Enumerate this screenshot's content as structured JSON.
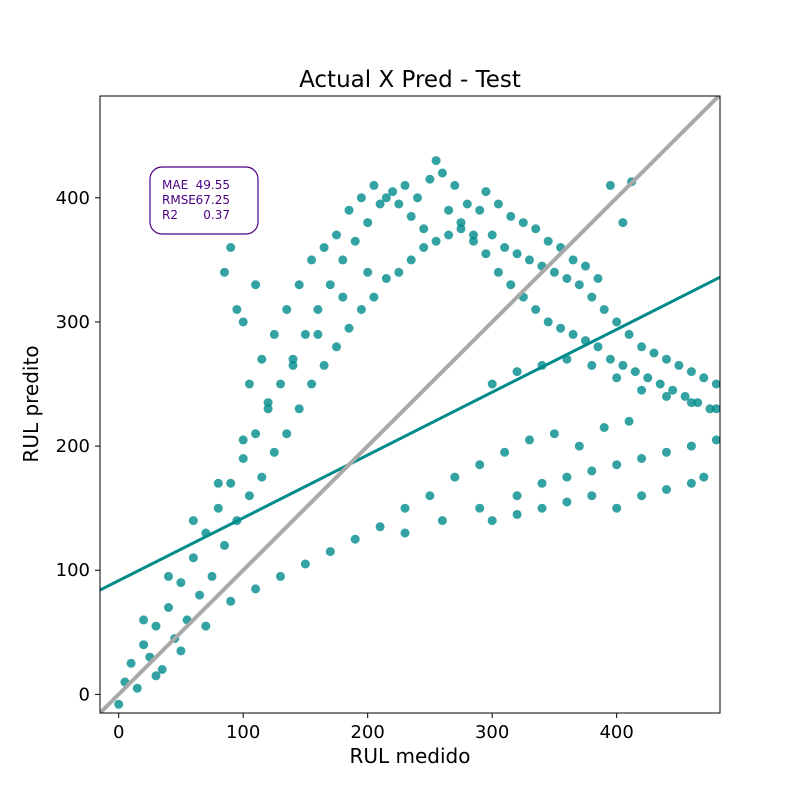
{
  "chart_data": {
    "type": "scatter",
    "title": "Actual X Pred - Test",
    "xlabel": "RUL medido",
    "ylabel": "RUL predito",
    "xlim": [
      -15,
      483
    ],
    "ylim": [
      -15,
      482
    ],
    "xticks": [
      0,
      100,
      200,
      300,
      400
    ],
    "yticks": [
      0,
      100,
      200,
      300,
      400
    ],
    "grid": false,
    "colors": {
      "points": "#008b8b",
      "regression": "#008b8b",
      "identity": "#a9a9a9",
      "metrics_text": "#4b0082",
      "metrics_border": "#4b0082"
    },
    "metrics": [
      {
        "label": "MAE",
        "value": "49.55"
      },
      {
        "label": "RMSE",
        "value": "67.25"
      },
      {
        "label": "R2",
        "value": "0.37"
      }
    ],
    "regression_line": {
      "x": [
        -15,
        483
      ],
      "y": [
        84,
        336
      ]
    },
    "identity_line": {
      "x": [
        -15,
        483
      ],
      "y": [
        -15,
        483
      ]
    },
    "series": [
      {
        "points": [
          [
            0,
            -8
          ],
          [
            5,
            10
          ],
          [
            10,
            25
          ],
          [
            15,
            5
          ],
          [
            20,
            40
          ],
          [
            25,
            30
          ],
          [
            30,
            55
          ],
          [
            35,
            20
          ],
          [
            40,
            70
          ],
          [
            45,
            45
          ],
          [
            50,
            90
          ],
          [
            55,
            60
          ],
          [
            60,
            110
          ],
          [
            65,
            80
          ],
          [
            70,
            130
          ],
          [
            75,
            95
          ],
          [
            80,
            150
          ],
          [
            85,
            120
          ],
          [
            90,
            170
          ],
          [
            95,
            140
          ],
          [
            100,
            190
          ],
          [
            105,
            160
          ],
          [
            110,
            210
          ],
          [
            115,
            175
          ],
          [
            120,
            230
          ],
          [
            125,
            195
          ],
          [
            130,
            250
          ],
          [
            135,
            210
          ],
          [
            140,
            270
          ],
          [
            145,
            230
          ],
          [
            150,
            290
          ],
          [
            155,
            250
          ],
          [
            160,
            310
          ],
          [
            165,
            265
          ],
          [
            170,
            330
          ],
          [
            175,
            280
          ],
          [
            180,
            350
          ],
          [
            185,
            295
          ],
          [
            190,
            365
          ],
          [
            195,
            310
          ],
          [
            200,
            380
          ],
          [
            205,
            320
          ],
          [
            210,
            395
          ],
          [
            215,
            335
          ],
          [
            220,
            405
          ],
          [
            225,
            340
          ],
          [
            230,
            410
          ],
          [
            235,
            350
          ],
          [
            240,
            400
          ],
          [
            245,
            360
          ],
          [
            250,
            415
          ],
          [
            255,
            365
          ],
          [
            260,
            420
          ],
          [
            265,
            370
          ],
          [
            270,
            410
          ],
          [
            275,
            375
          ],
          [
            280,
            395
          ],
          [
            285,
            365
          ],
          [
            290,
            390
          ],
          [
            295,
            355
          ],
          [
            300,
            370
          ],
          [
            305,
            340
          ],
          [
            310,
            360
          ],
          [
            315,
            330
          ],
          [
            320,
            355
          ],
          [
            325,
            320
          ],
          [
            330,
            350
          ],
          [
            335,
            310
          ],
          [
            340,
            345
          ],
          [
            345,
            300
          ],
          [
            350,
            340
          ],
          [
            355,
            295
          ],
          [
            360,
            335
          ],
          [
            365,
            290
          ],
          [
            370,
            330
          ],
          [
            375,
            285
          ],
          [
            380,
            320
          ],
          [
            385,
            280
          ],
          [
            390,
            310
          ],
          [
            395,
            270
          ],
          [
            400,
            300
          ],
          [
            405,
            265
          ],
          [
            410,
            290
          ],
          [
            415,
            260
          ],
          [
            420,
            280
          ],
          [
            425,
            255
          ],
          [
            430,
            275
          ],
          [
            435,
            250
          ],
          [
            440,
            270
          ],
          [
            445,
            245
          ],
          [
            450,
            265
          ],
          [
            455,
            240
          ],
          [
            460,
            260
          ],
          [
            465,
            235
          ],
          [
            470,
            255
          ],
          [
            475,
            230
          ],
          [
            480,
            250
          ],
          [
            20,
            60
          ],
          [
            40,
            95
          ],
          [
            60,
            140
          ],
          [
            80,
            170
          ],
          [
            100,
            205
          ],
          [
            120,
            235
          ],
          [
            140,
            265
          ],
          [
            160,
            290
          ],
          [
            180,
            320
          ],
          [
            200,
            340
          ],
          [
            30,
            15
          ],
          [
            50,
            35
          ],
          [
            70,
            55
          ],
          [
            90,
            75
          ],
          [
            110,
            85
          ],
          [
            130,
            95
          ],
          [
            150,
            105
          ],
          [
            170,
            115
          ],
          [
            190,
            125
          ],
          [
            210,
            135
          ],
          [
            230,
            150
          ],
          [
            250,
            160
          ],
          [
            270,
            175
          ],
          [
            290,
            185
          ],
          [
            310,
            195
          ],
          [
            330,
            205
          ],
          [
            350,
            210
          ],
          [
            370,
            200
          ],
          [
            390,
            215
          ],
          [
            410,
            220
          ],
          [
            230,
            130
          ],
          [
            260,
            140
          ],
          [
            290,
            150
          ],
          [
            320,
            160
          ],
          [
            340,
            170
          ],
          [
            360,
            175
          ],
          [
            380,
            180
          ],
          [
            400,
            185
          ],
          [
            420,
            190
          ],
          [
            440,
            195
          ],
          [
            460,
            200
          ],
          [
            480,
            205
          ],
          [
            300,
            140
          ],
          [
            320,
            145
          ],
          [
            340,
            150
          ],
          [
            360,
            155
          ],
          [
            380,
            160
          ],
          [
            400,
            150
          ],
          [
            420,
            160
          ],
          [
            440,
            165
          ],
          [
            460,
            170
          ],
          [
            470,
            175
          ],
          [
            300,
            250
          ],
          [
            320,
            260
          ],
          [
            340,
            265
          ],
          [
            360,
            270
          ],
          [
            380,
            265
          ],
          [
            400,
            255
          ],
          [
            420,
            245
          ],
          [
            440,
            240
          ],
          [
            460,
            235
          ],
          [
            480,
            230
          ],
          [
            100,
            300
          ],
          [
            110,
            330
          ],
          [
            90,
            360
          ],
          [
            85,
            340
          ],
          [
            95,
            310
          ],
          [
            105,
            250
          ],
          [
            115,
            270
          ],
          [
            125,
            290
          ],
          [
            135,
            310
          ],
          [
            145,
            330
          ],
          [
            155,
            350
          ],
          [
            165,
            360
          ],
          [
            175,
            370
          ],
          [
            185,
            390
          ],
          [
            195,
            400
          ],
          [
            205,
            410
          ],
          [
            215,
            400
          ],
          [
            225,
            395
          ],
          [
            235,
            385
          ],
          [
            245,
            375
          ],
          [
            255,
            430
          ],
          [
            265,
            390
          ],
          [
            275,
            380
          ],
          [
            285,
            370
          ],
          [
            295,
            405
          ],
          [
            305,
            395
          ],
          [
            315,
            385
          ],
          [
            325,
            380
          ],
          [
            335,
            375
          ],
          [
            345,
            365
          ],
          [
            355,
            360
          ],
          [
            365,
            350
          ],
          [
            375,
            345
          ],
          [
            385,
            335
          ],
          [
            395,
            410
          ],
          [
            405,
            380
          ],
          [
            412,
            413
          ]
        ]
      }
    ]
  }
}
